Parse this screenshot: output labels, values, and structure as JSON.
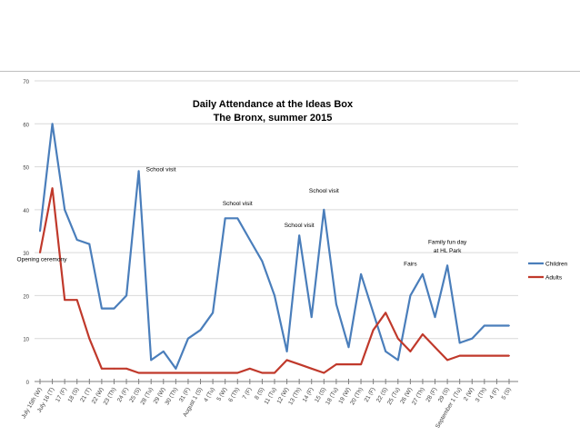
{
  "chart_data": {
    "type": "line",
    "title": "Daily Attendance at the Ideas Box",
    "subtitle": "The Bronx, summer 2015",
    "xlabel": "",
    "ylabel": "",
    "ylim": [
      0,
      70
    ],
    "yticks": [
      0,
      10,
      20,
      30,
      40,
      50,
      60,
      70
    ],
    "grid": true,
    "legend_position": "right",
    "colors": {
      "Children": "#4a7ebb",
      "Adults": "#c0392b",
      "grid": "#d9d9d9",
      "axis": "#7f7f7f"
    },
    "x": [
      "July 15th (W)",
      "July 16 (T)",
      "17 (F)",
      "18 (S)",
      "21 (T)",
      "22 (W)",
      "23 (Th)",
      "24 (F)",
      "25 (S)",
      "28 (Tu)",
      "29 (W)",
      "30 (Th)",
      "31 (F)",
      "August 1 (S)",
      "4 (Tu)",
      "5 (W)",
      "6 (Th)",
      "7 (F)",
      "8 (S)",
      "11 (Tu)",
      "12 (W)",
      "13 (Th)",
      "14 (F)",
      "15 (S)",
      "18 (Tu)",
      "19 (W)",
      "20 (Th)",
      "21 (F)",
      "22 (S)",
      "25 (Tu)",
      "26 (W)",
      "27 (Th)",
      "28 (F)",
      "29 (S)",
      "September 1 (Tu)",
      "2 (W)",
      "3 (Th)",
      "4 (F)",
      "5 (S)"
    ],
    "x_tick_labels": [
      "July 15th (W)",
      "July 16 (T)",
      "17 (F)",
      "18 (S)",
      "21 (T)",
      "22 (W)",
      "23 (Th)",
      "24 (F)",
      "25 (S)",
      "28 (Tu)",
      "29 (W)",
      "30 (Th)",
      "31 (F)",
      "August 1 (S)",
      "4 (Tu)",
      "5 (W)",
      "6 (Th)",
      "7 (F)",
      "8 (S)",
      "11 (Tu)",
      "12 (W)",
      "13 (Th)",
      "14 (F)",
      "15 (S)",
      "18 (Tu)",
      "19 (W)",
      "20 (Th)",
      "21 (F)",
      "22 (S)",
      "25 (Tu)",
      "26 (W)",
      "27 (Th)",
      "28 (F)",
      "29 (S)",
      "September 1 (Tu)",
      "2 (W)",
      "3 (Th)",
      "4 (F)",
      "5 (S)"
    ],
    "series": [
      {
        "name": "Children",
        "values": [
          35,
          60,
          40,
          33,
          32,
          17,
          17,
          20,
          49,
          5,
          7,
          3,
          10,
          12,
          16,
          38,
          38,
          33,
          28,
          20,
          7,
          34,
          15,
          40,
          18,
          8,
          25,
          16,
          7,
          5,
          20,
          25,
          15,
          27,
          9,
          10,
          13,
          13,
          13
        ]
      },
      {
        "name": "Adults",
        "values": [
          30,
          45,
          19,
          19,
          10,
          3,
          3,
          3,
          2,
          2,
          2,
          2,
          2,
          2,
          2,
          2,
          2,
          3,
          2,
          2,
          5,
          4,
          3,
          2,
          4,
          4,
          4,
          12,
          16,
          10,
          7,
          11,
          8,
          5,
          6,
          6,
          6,
          6,
          6
        ]
      }
    ],
    "annotations": [
      {
        "text": "Opening ceremony",
        "x_index": 0,
        "y": 28
      },
      {
        "text": "School visit",
        "x_index": 8,
        "y": 49
      },
      {
        "text": "School visit",
        "x_index": 16,
        "y": 41
      },
      {
        "text": "School visit",
        "x_index": 21,
        "y": 36
      },
      {
        "text": "School visit",
        "x_index": 23,
        "y": 44
      },
      {
        "text": "Fairs",
        "x_index": 30,
        "y": 27
      },
      {
        "text": "Family fun day",
        "x_index": 33,
        "y": 32
      },
      {
        "text": "at HL Park",
        "x_index": 33,
        "y": 30
      }
    ]
  }
}
